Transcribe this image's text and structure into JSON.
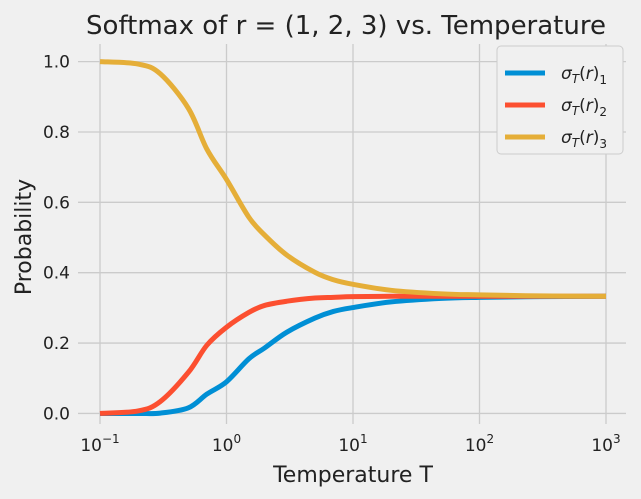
{
  "chart_data": {
    "type": "line",
    "title": "Softmax of r = (1, 2, 3) vs. Temperature",
    "xlabel": "Temperature T",
    "ylabel": "Probability",
    "xscale": "log",
    "xlim": [
      0.1,
      1000
    ],
    "ylim": [
      -0.03,
      1.05
    ],
    "grid": true,
    "legend_placement": "top-right",
    "x_ticks": [
      0.1,
      1,
      10,
      100,
      1000
    ],
    "x_tick_labels": [
      {
        "base": "10",
        "exp": "−1"
      },
      {
        "base": "10",
        "exp": "0"
      },
      {
        "base": "10",
        "exp": "1"
      },
      {
        "base": "10",
        "exp": "2"
      },
      {
        "base": "10",
        "exp": "3"
      }
    ],
    "y_ticks": [
      0.0,
      0.2,
      0.4,
      0.6,
      0.8,
      1.0
    ],
    "y_tick_labels": [
      "0.0",
      "0.2",
      "0.4",
      "0.6",
      "0.8",
      "1.0"
    ],
    "x": [
      0.1,
      0.2,
      0.3,
      0.5,
      0.7,
      1,
      1.5,
      2,
      3,
      5,
      7,
      10,
      20,
      50,
      100,
      300,
      1000
    ],
    "series": [
      {
        "name": "σ_T(r)_1",
        "color": "#008fd5",
        "values": [
          0.0,
          0.0,
          0.001,
          0.016,
          0.055,
          0.09,
          0.155,
          0.186,
          0.231,
          0.271,
          0.29,
          0.301,
          0.317,
          0.327,
          0.33,
          0.332,
          0.333
        ]
      },
      {
        "name": "σ_T(r)_2",
        "color": "#fc4f30",
        "values": [
          0.0,
          0.007,
          0.034,
          0.117,
          0.194,
          0.245,
          0.287,
          0.307,
          0.319,
          0.328,
          0.33,
          0.332,
          0.333,
          0.333,
          0.333,
          0.333,
          0.333
        ]
      },
      {
        "name": "σ_T(r)_3",
        "color": "#e5ae38",
        "values": [
          1.0,
          0.993,
          0.965,
          0.867,
          0.751,
          0.665,
          0.558,
          0.507,
          0.45,
          0.401,
          0.38,
          0.367,
          0.35,
          0.34,
          0.337,
          0.334,
          0.333
        ]
      }
    ]
  }
}
